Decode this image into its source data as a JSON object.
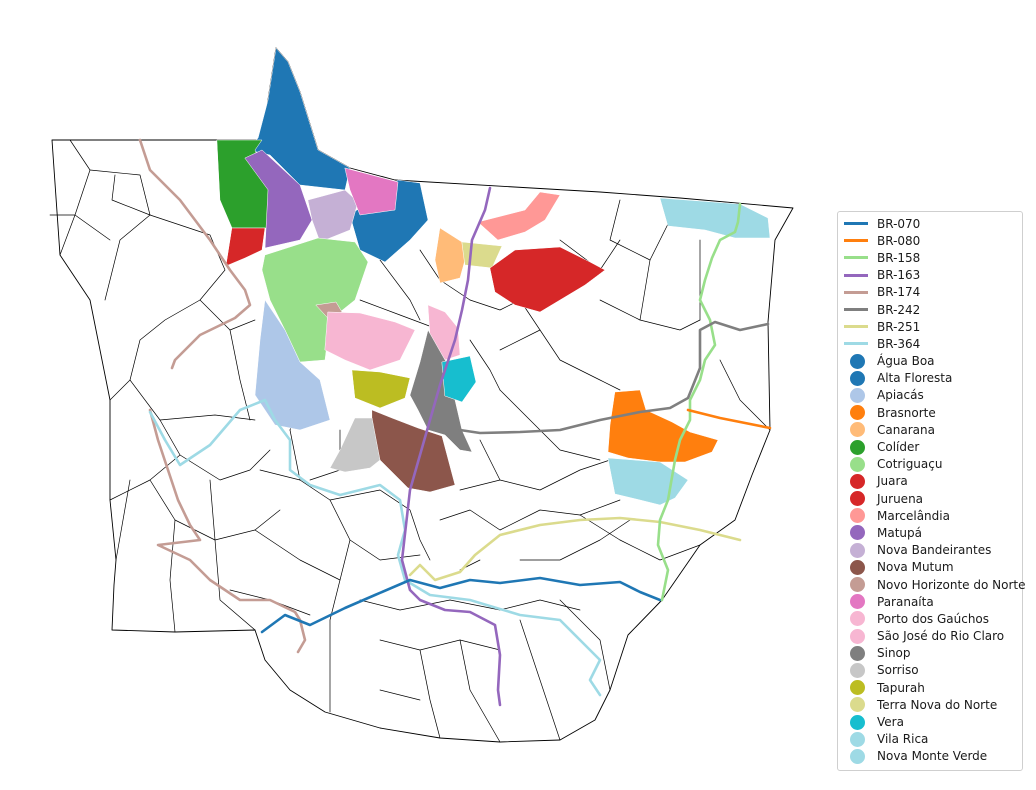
{
  "roads": [
    {
      "name": "BR-070",
      "color": "#1f77b4"
    },
    {
      "name": "BR-080",
      "color": "#ff7f0e"
    },
    {
      "name": "BR-158",
      "color": "#98df8a"
    },
    {
      "name": "BR-163",
      "color": "#9467bd"
    },
    {
      "name": "BR-174",
      "color": "#c49c94"
    },
    {
      "name": "BR-242",
      "color": "#7f7f7f"
    },
    {
      "name": "BR-251",
      "color": "#dbdb8d"
    },
    {
      "name": "BR-364",
      "color": "#9edae5"
    }
  ],
  "municipalities": [
    {
      "name": "Água Boa",
      "color": "#1f77b4"
    },
    {
      "name": "Alta Floresta",
      "color": "#1f77b4"
    },
    {
      "name": "Apiacás",
      "color": "#aec7e8"
    },
    {
      "name": "Brasnorte",
      "color": "#ff7f0e"
    },
    {
      "name": "Canarana",
      "color": "#ffbb78"
    },
    {
      "name": "Colíder",
      "color": "#2ca02c"
    },
    {
      "name": "Cotriguaçu",
      "color": "#98df8a"
    },
    {
      "name": "Juara",
      "color": "#d62728"
    },
    {
      "name": "Juruena",
      "color": "#d62728"
    },
    {
      "name": "Marcelândia",
      "color": "#ff9896"
    },
    {
      "name": "Matupá",
      "color": "#9467bd"
    },
    {
      "name": "Nova Bandeirantes",
      "color": "#c5b0d5"
    },
    {
      "name": "Nova Mutum",
      "color": "#8c564b"
    },
    {
      "name": "Novo Horizonte do Norte",
      "color": "#c49c94"
    },
    {
      "name": "Paranaíta",
      "color": "#e377c2"
    },
    {
      "name": "Porto dos Gaúchos",
      "color": "#f7b6d2"
    },
    {
      "name": "São José do Rio Claro",
      "color": "#f7b6d2"
    },
    {
      "name": "Sinop",
      "color": "#7f7f7f"
    },
    {
      "name": "Sorriso",
      "color": "#c7c7c7"
    },
    {
      "name": "Tapurah",
      "color": "#bcbd22"
    },
    {
      "name": "Terra Nova do Norte",
      "color": "#dbdb8d"
    },
    {
      "name": "Vera",
      "color": "#17becf"
    },
    {
      "name": "Vila Rica",
      "color": "#9edae5"
    },
    {
      "name": "Nova Monte Verde",
      "color": "#9edae5"
    }
  ]
}
